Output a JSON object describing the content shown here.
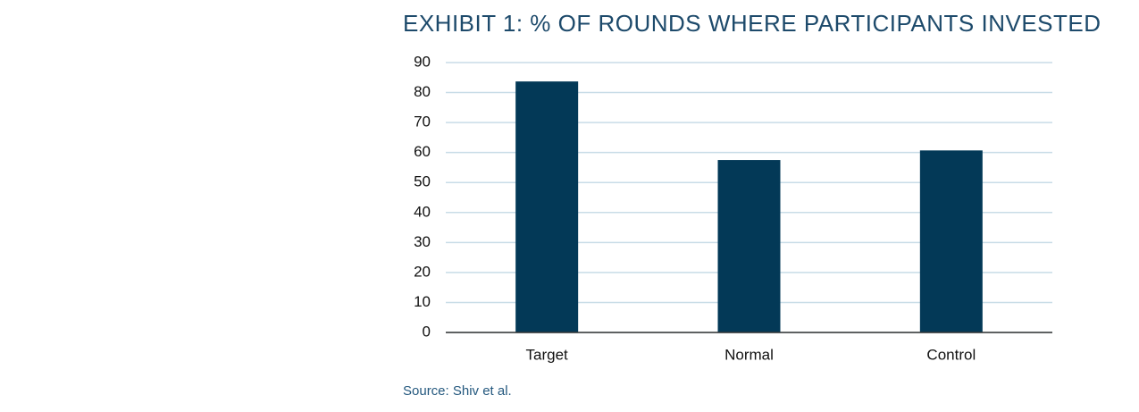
{
  "chart_data": {
    "type": "bar",
    "title": "EXHIBIT 1: % OF ROUNDS WHERE PARTICIPANTS INVESTED",
    "categories": [
      "Target",
      "Normal",
      "Control"
    ],
    "values": [
      83.7,
      57.5,
      60.7
    ],
    "color": "#033957",
    "ylim": [
      0,
      90
    ],
    "yticks": [
      0,
      10,
      20,
      30,
      40,
      50,
      60,
      70,
      80,
      90
    ],
    "grid": true,
    "source": "Source: Shiv et al."
  }
}
